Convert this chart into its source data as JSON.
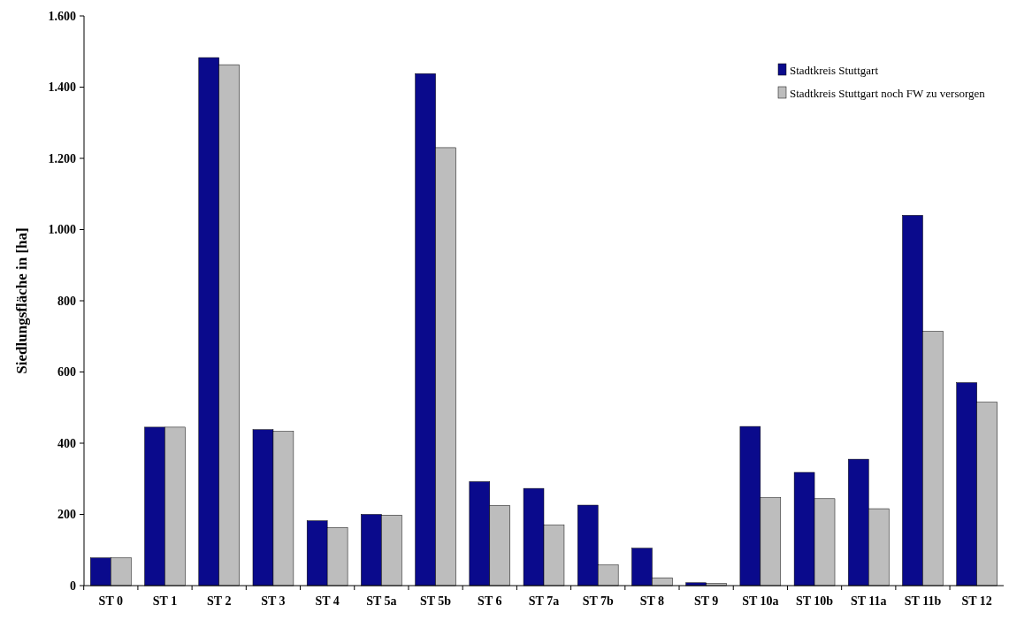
{
  "chart_data": {
    "type": "bar",
    "ylabel": "Siedlungsfläche in [ha]",
    "categories": [
      "ST 0",
      "ST 1",
      "ST 2",
      "ST 3",
      "ST 4",
      "ST 5a",
      "ST 5b",
      "ST 6",
      "ST 7a",
      "ST 7b",
      "ST 8",
      "ST 9",
      "ST 10a",
      "ST 10b",
      "ST 11a",
      "ST 11b",
      "ST 12"
    ],
    "series": [
      {
        "name": "Stadtkreis Stuttgart",
        "color": "#0a0a8c",
        "values": [
          78,
          445,
          1483,
          438,
          182,
          200,
          1438,
          292,
          273,
          226,
          105,
          8,
          447,
          318,
          355,
          1040,
          570
        ]
      },
      {
        "name": "Stadtkreis Stuttgart noch FW zu versorgen",
        "color": "#bdbdbd",
        "values": [
          78,
          445,
          1463,
          433,
          163,
          198,
          1230,
          225,
          170,
          58,
          22,
          6,
          247,
          244,
          216,
          714,
          515
        ]
      }
    ],
    "ylim": [
      0,
      1600
    ],
    "yticks": [
      {
        "value": 0,
        "label": "0"
      },
      {
        "value": 200,
        "label": "200"
      },
      {
        "value": 400,
        "label": "400"
      },
      {
        "value": 600,
        "label": "600"
      },
      {
        "value": 800,
        "label": "800"
      },
      {
        "value": 1000,
        "label": "1.000"
      },
      {
        "value": 1200,
        "label": "1.200"
      },
      {
        "value": 1400,
        "label": "1.400"
      },
      {
        "value": 1600,
        "label": "1.600"
      }
    ],
    "grid": false,
    "legend": "top right"
  }
}
